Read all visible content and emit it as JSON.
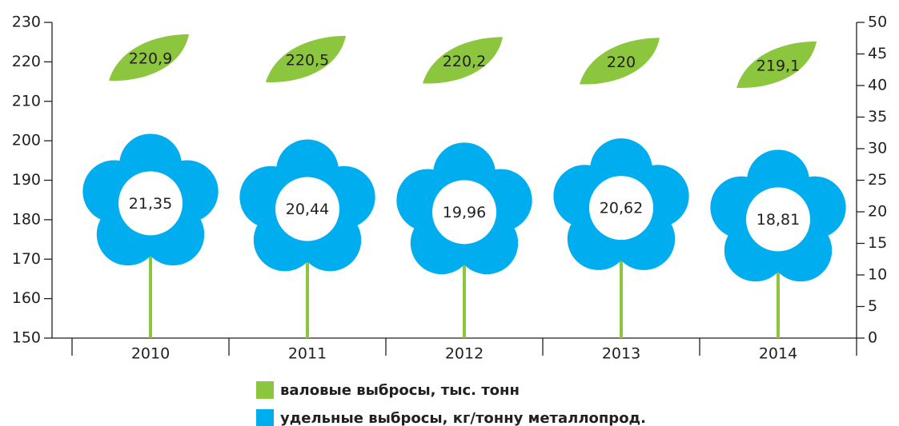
{
  "chart_data": {
    "type": "flower",
    "categories": [
      "2010",
      "2011",
      "2012",
      "2013",
      "2014"
    ],
    "series": [
      {
        "name": "валовые выбросы, тыс. тонн",
        "color": "#8cc63f",
        "values": [
          220.9,
          220.5,
          220.2,
          220,
          219.1
        ],
        "value_labels": [
          "220,9",
          "220,5",
          "220,2",
          "220",
          "219,1"
        ]
      },
      {
        "name": "удельные выбросы, кг/тонну металлопрод.",
        "color": "#00aeef",
        "axis": "y2",
        "values": [
          21.35,
          20.44,
          19.96,
          20.62,
          18.81
        ],
        "value_labels": [
          "21,35",
          "20,44",
          "19,96",
          "20,62",
          "18,81"
        ]
      }
    ],
    "ylim": [
      150,
      230
    ],
    "yticks": [
      150,
      160,
      170,
      180,
      190,
      200,
      210,
      220,
      230
    ],
    "y2lim": [
      0,
      50
    ],
    "y2ticks": [
      0,
      5,
      10,
      15,
      20,
      25,
      30,
      35,
      40,
      45,
      50
    ]
  }
}
